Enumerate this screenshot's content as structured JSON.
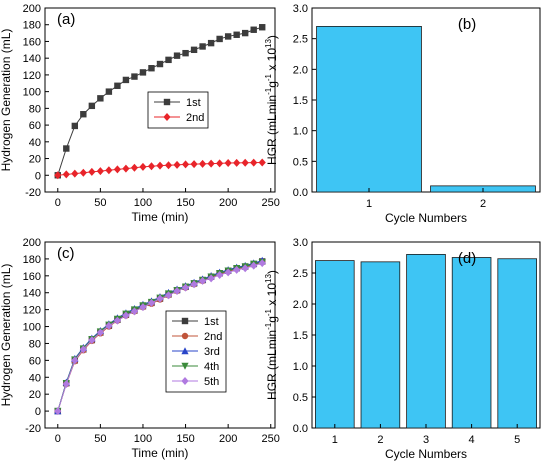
{
  "chart_data": [
    {
      "panel": "(a)",
      "type": "line",
      "xlabel": "Time (min)",
      "ylabel": "Hydrogen Generation (mL)",
      "xlim": [
        -15,
        255
      ],
      "ylim": [
        -20,
        200
      ],
      "xticks": [
        0,
        50,
        100,
        150,
        200,
        250
      ],
      "yticks": [
        -20,
        0,
        20,
        40,
        60,
        80,
        100,
        120,
        140,
        160,
        180,
        200
      ],
      "legend_position": "center",
      "series": [
        {
          "name": "1st",
          "color": "#3c3c3c",
          "marker": "square",
          "x": [
            0,
            10,
            20,
            30,
            40,
            50,
            60,
            70,
            80,
            90,
            100,
            110,
            120,
            130,
            140,
            150,
            160,
            170,
            180,
            190,
            200,
            210,
            220,
            230,
            240
          ],
          "y": [
            0,
            32,
            59,
            73,
            83,
            92,
            100,
            107,
            114,
            118,
            123,
            128,
            133,
            138,
            143,
            146,
            150,
            154,
            158,
            163,
            166,
            168,
            170,
            174,
            177
          ]
        },
        {
          "name": "2nd",
          "color": "#e8242a",
          "marker": "diamond",
          "x": [
            0,
            10,
            20,
            30,
            40,
            50,
            60,
            70,
            80,
            90,
            100,
            110,
            120,
            130,
            140,
            150,
            160,
            170,
            180,
            190,
            200,
            210,
            220,
            230,
            240
          ],
          "y": [
            0,
            1,
            2,
            3,
            4,
            5,
            6,
            7,
            8,
            9,
            10,
            10.8,
            11.5,
            12,
            12.5,
            13,
            13.3,
            13.7,
            14,
            14.3,
            14.6,
            14.8,
            15,
            15.1,
            15.2
          ]
        }
      ]
    },
    {
      "panel": "(b)",
      "type": "bar",
      "xlabel": "Cycle Numbers",
      "ylabel": "HGR (mLmin⁻¹g⁻¹ x 10¹³)",
      "categories": [
        "1",
        "2"
      ],
      "values": [
        2.7,
        0.1
      ],
      "ylim": [
        0,
        3.0
      ],
      "yticks": [
        "0.0",
        "0.5",
        "1.0",
        "1.5",
        "2.0",
        "2.5",
        "3.0"
      ],
      "bar_color": "#3ec5f4"
    },
    {
      "panel": "(c)",
      "type": "line",
      "xlabel": "Time (min)",
      "ylabel": "Hydrogen Generation (mL)",
      "xlim": [
        -15,
        255
      ],
      "ylim": [
        -20,
        200
      ],
      "xticks": [
        0,
        50,
        100,
        150,
        200,
        250
      ],
      "yticks": [
        -20,
        0,
        20,
        40,
        60,
        80,
        100,
        120,
        140,
        160,
        180,
        200
      ],
      "legend_position": "center-right",
      "x": [
        0,
        10,
        20,
        30,
        40,
        50,
        60,
        70,
        80,
        90,
        100,
        110,
        120,
        130,
        140,
        150,
        160,
        170,
        180,
        190,
        200,
        210,
        220,
        230,
        240
      ],
      "series": [
        {
          "name": "1st",
          "color": "#3c3c3c",
          "marker": "square",
          "y": [
            0,
            33,
            60,
            73,
            84,
            93,
            101,
            108,
            114,
            119,
            124,
            128,
            133,
            138,
            143,
            147,
            151,
            155,
            159,
            163,
            166,
            169,
            171,
            174,
            177
          ]
        },
        {
          "name": "2nd",
          "color": "#c0543a",
          "marker": "circle",
          "y": [
            0,
            32,
            59,
            72,
            83,
            92,
            100,
            107,
            113,
            118,
            123,
            127,
            132,
            137,
            142,
            146,
            150,
            154,
            158,
            162,
            165,
            168,
            170,
            173,
            176
          ]
        },
        {
          "name": "3rd",
          "color": "#2945c8",
          "marker": "triangle-up",
          "y": [
            0,
            34,
            62,
            75,
            86,
            95,
            103,
            110,
            116,
            121,
            126,
            130,
            135,
            140,
            144,
            148,
            152,
            156,
            160,
            164,
            167,
            170,
            172,
            175,
            178
          ]
        },
        {
          "name": "4th",
          "color": "#3a8a3a",
          "marker": "triangle-down",
          "y": [
            0,
            33,
            61,
            74,
            85,
            94,
            102,
            109,
            115,
            120,
            125,
            129,
            134,
            139,
            143,
            147,
            151,
            155,
            159,
            163,
            166,
            169,
            171,
            174,
            176
          ]
        },
        {
          "name": "5th",
          "color": "#b07ae0",
          "marker": "diamond",
          "y": [
            0,
            32,
            60,
            73,
            84,
            93,
            101,
            107,
            113,
            118,
            123,
            128,
            133,
            137,
            142,
            146,
            150,
            154,
            157,
            161,
            164,
            167,
            169,
            172,
            175
          ]
        }
      ]
    },
    {
      "panel": "(d)",
      "type": "bar",
      "xlabel": "Cycle Numbers",
      "ylabel": "HGR (mLmin⁻¹g⁻¹ x 10¹³)",
      "categories": [
        "1",
        "2",
        "3",
        "4",
        "5"
      ],
      "values": [
        2.7,
        2.68,
        2.8,
        2.75,
        2.73
      ],
      "ylim": [
        0,
        3.0
      ],
      "yticks": [
        "0.0",
        "0.5",
        "1.0",
        "1.5",
        "2.0",
        "2.5",
        "3.0"
      ],
      "bar_color": "#3ec5f4"
    }
  ]
}
